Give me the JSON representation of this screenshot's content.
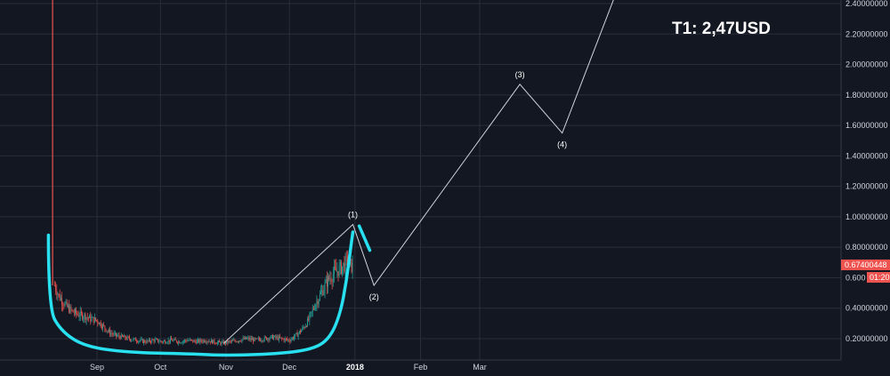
{
  "annotation": {
    "target_label": "T1: 2,47USD"
  },
  "price_tag": {
    "value": "0.67400448",
    "countdown": "01:20",
    "color": "#ef5350"
  },
  "colors": {
    "background": "#131722",
    "grid": "#2a2e39",
    "axis_text": "#d1d4dc",
    "candle_up": "#26a69a",
    "candle_down": "#ef5350",
    "wave_line": "#d1d4dc",
    "cup": "#28e0f0"
  },
  "chart_data": {
    "type": "line",
    "xlabel": "",
    "ylabel": "",
    "ylim": [
      0.05,
      2.45
    ],
    "grid": true,
    "y_ticks": [
      "0.20000000",
      "0.40000000",
      "0.600",
      "0.80000000",
      "1.00000000",
      "1.20000000",
      "1.40000000",
      "1.60000000",
      "1.80000000",
      "2.00000000",
      "2.20000000",
      "2.40000000"
    ],
    "y_tick_values": [
      0.2,
      0.4,
      0.6,
      0.8,
      1.0,
      1.2,
      1.4,
      1.6,
      1.8,
      2.0,
      2.2,
      2.4
    ],
    "x_ticks": [
      {
        "label": "Sep",
        "date": "2017-09-01",
        "bold": false
      },
      {
        "label": "Oct",
        "date": "2017-10-01",
        "bold": false
      },
      {
        "label": "Nov",
        "date": "2017-11-01",
        "bold": false
      },
      {
        "label": "Dec",
        "date": "2017-12-01",
        "bold": false
      },
      {
        "label": "2018",
        "date": "2018-01-01",
        "bold": true
      },
      {
        "label": "Feb",
        "date": "2018-02-01",
        "bold": false
      },
      {
        "label": "Mar",
        "date": "2018-03-01",
        "bold": false
      }
    ],
    "price_series": [
      [
        "2017-08-12",
        0.55
      ],
      [
        "2017-08-14",
        0.48
      ],
      [
        "2017-08-17",
        0.42
      ],
      [
        "2017-08-20",
        0.38
      ],
      [
        "2017-08-23",
        0.36
      ],
      [
        "2017-08-26",
        0.35
      ],
      [
        "2017-08-29",
        0.33
      ],
      [
        "2017-09-01",
        0.32
      ],
      [
        "2017-09-04",
        0.28
      ],
      [
        "2017-09-07",
        0.24
      ],
      [
        "2017-09-10",
        0.22
      ],
      [
        "2017-09-13",
        0.21
      ],
      [
        "2017-09-16",
        0.2
      ],
      [
        "2017-09-20",
        0.19
      ],
      [
        "2017-09-24",
        0.18
      ],
      [
        "2017-09-28",
        0.19
      ],
      [
        "2017-10-02",
        0.18
      ],
      [
        "2017-10-06",
        0.19
      ],
      [
        "2017-10-10",
        0.18
      ],
      [
        "2017-10-14",
        0.19
      ],
      [
        "2017-10-18",
        0.18
      ],
      [
        "2017-10-22",
        0.19
      ],
      [
        "2017-10-26",
        0.18
      ],
      [
        "2017-10-30",
        0.17
      ],
      [
        "2017-11-03",
        0.18
      ],
      [
        "2017-11-07",
        0.19
      ],
      [
        "2017-11-11",
        0.2
      ],
      [
        "2017-11-15",
        0.19
      ],
      [
        "2017-11-19",
        0.2
      ],
      [
        "2017-11-23",
        0.21
      ],
      [
        "2017-11-27",
        0.2
      ],
      [
        "2017-12-01",
        0.19
      ],
      [
        "2017-12-04",
        0.22
      ],
      [
        "2017-12-07",
        0.26
      ],
      [
        "2017-12-10",
        0.32
      ],
      [
        "2017-12-13",
        0.42
      ],
      [
        "2017-12-16",
        0.5
      ],
      [
        "2017-12-19",
        0.58
      ],
      [
        "2017-12-22",
        0.63
      ],
      [
        "2017-12-25",
        0.66
      ],
      [
        "2017-12-28",
        0.7
      ],
      [
        "2017-12-31",
        0.67
      ]
    ],
    "spike": {
      "date": "2017-08-11",
      "high": 2.45,
      "low": 0.55
    },
    "wave_projection": [
      {
        "label": "",
        "date": "2017-10-31",
        "value": 0.17
      },
      {
        "label": "(1)",
        "date": "2017-12-31",
        "value": 0.95
      },
      {
        "label": "(2)",
        "date": "2018-01-10",
        "value": 0.55
      },
      {
        "label": "(3)",
        "date": "2018-03-20",
        "value": 1.87
      },
      {
        "label": "(4)",
        "date": "2018-04-09",
        "value": 1.55
      },
      {
        "label": "",
        "date": "2018-05-04",
        "value": 2.45
      }
    ],
    "cup_curve": [
      [
        "2017-08-09",
        0.88
      ],
      [
        "2017-08-09",
        0.4
      ],
      [
        "2017-08-15",
        0.25
      ],
      [
        "2017-08-26",
        0.15
      ],
      [
        "2017-09-15",
        0.11
      ],
      [
        "2017-10-15",
        0.1
      ],
      [
        "2017-11-01",
        0.09
      ],
      [
        "2017-11-25",
        0.1
      ],
      [
        "2017-12-12",
        0.13
      ],
      [
        "2017-12-20",
        0.2
      ],
      [
        "2017-12-25",
        0.36
      ],
      [
        "2017-12-28",
        0.58
      ],
      [
        "2017-12-30",
        0.8
      ],
      [
        "2017-12-31",
        0.9
      ]
    ],
    "cup_mark": [
      [
        "2018-01-03",
        0.94
      ],
      [
        "2018-01-08",
        0.78
      ]
    ]
  }
}
